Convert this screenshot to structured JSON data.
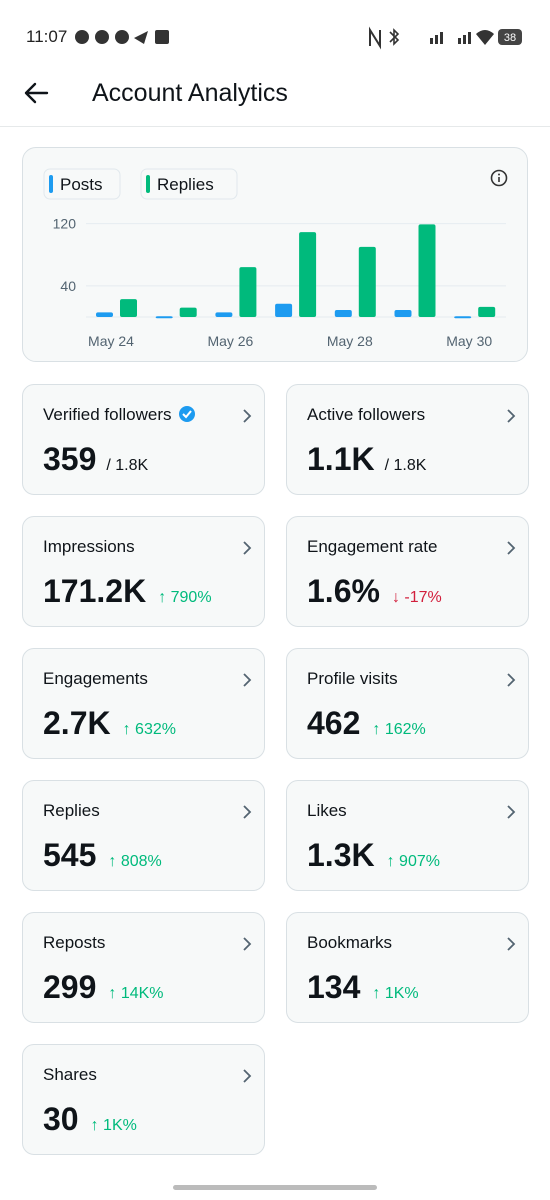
{
  "status_bar": {
    "time": "11:07",
    "battery": "38"
  },
  "header": {
    "title": "Account Analytics"
  },
  "chart_data": {
    "type": "bar",
    "categories": [
      "May 24",
      null,
      "May 26",
      null,
      "May 28",
      null,
      "May 30"
    ],
    "series": [
      {
        "name": "Posts",
        "color": "#1d9bf0",
        "values": [
          6,
          1,
          6,
          17,
          9,
          9,
          1
        ]
      },
      {
        "name": "Replies",
        "color": "#00ba7c",
        "values": [
          23,
          12,
          64,
          109,
          90,
          119,
          13
        ]
      }
    ],
    "ylim": [
      0,
      140
    ],
    "yticks": [
      40,
      120
    ],
    "grid": true
  },
  "cards": [
    {
      "title": "Verified followers",
      "value": "359",
      "sub": "/ 1.8K",
      "badge": true
    },
    {
      "title": "Active followers",
      "value": "1.1K",
      "sub": "/ 1.8K"
    },
    {
      "title": "Impressions",
      "value": "171.2K",
      "change": "↑ 790%",
      "change_color": "#00ba7c"
    },
    {
      "title": "Engagement rate",
      "value": "1.6%",
      "change": "↓ -17%",
      "change_color": "#d21f3c"
    },
    {
      "title": "Engagements",
      "value": "2.7K",
      "change": "↑ 632%",
      "change_color": "#00ba7c"
    },
    {
      "title": "Profile visits",
      "value": "462",
      "change": "↑ 162%",
      "change_color": "#00ba7c"
    },
    {
      "title": "Replies",
      "value": "545",
      "change": "↑ 808%",
      "change_color": "#00ba7c"
    },
    {
      "title": "Likes",
      "value": "1.3K",
      "change": "↑ 907%",
      "change_color": "#00ba7c"
    },
    {
      "title": "Reposts",
      "value": "299",
      "change": "↑ 14K%",
      "change_color": "#00ba7c"
    },
    {
      "title": "Bookmarks",
      "value": "134",
      "change": "↑ 1K%",
      "change_color": "#00ba7c"
    },
    {
      "title": "Shares",
      "value": "30",
      "change": "↑ 1K%",
      "change_color": "#00ba7c"
    }
  ]
}
